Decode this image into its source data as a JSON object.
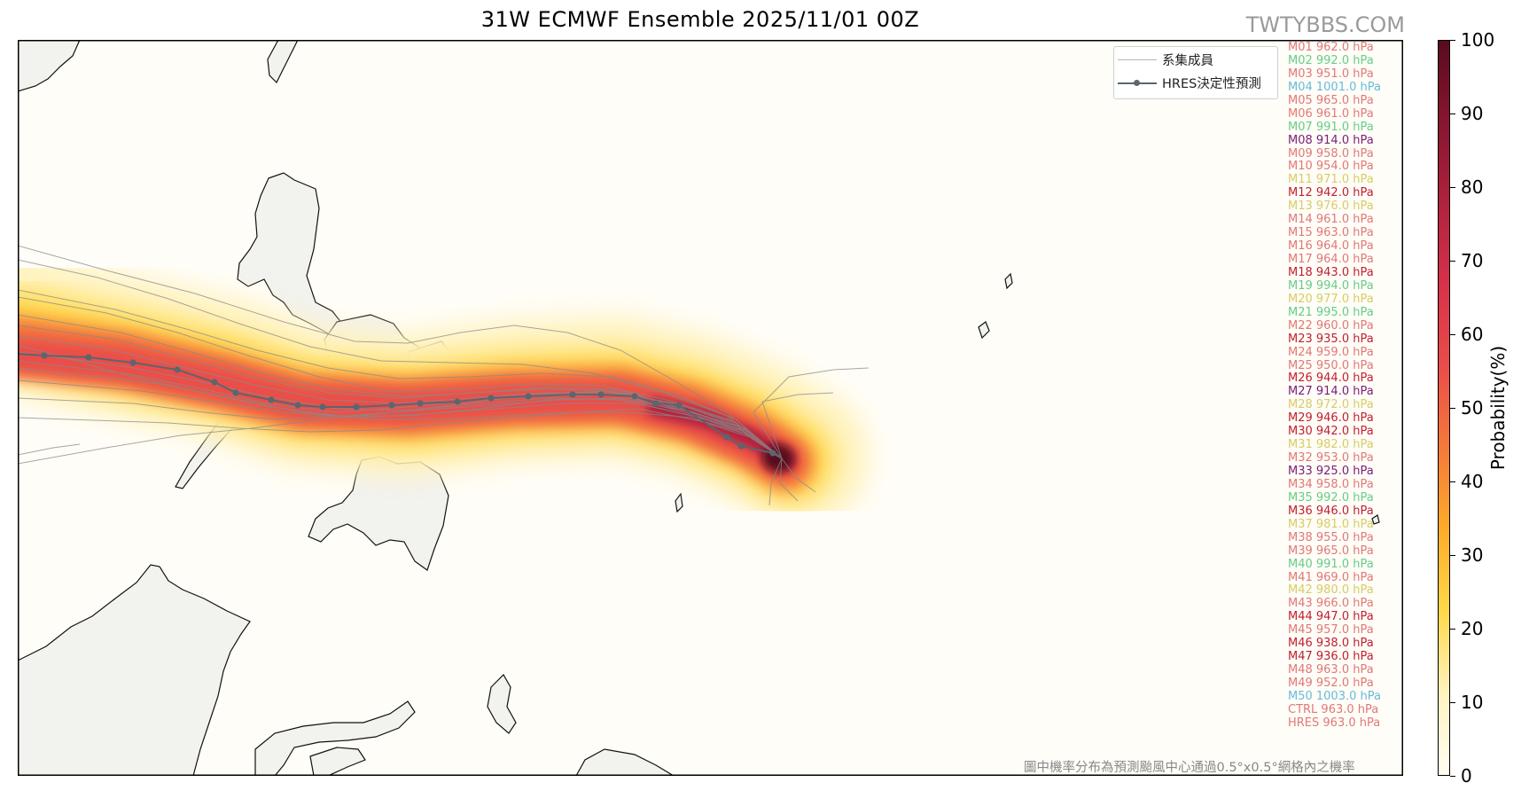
{
  "title": "31W  ECMWF Ensemble 2025/11/01 00Z",
  "watermark": "TWTYBBS.COM",
  "legend": {
    "members_label": "系集成員",
    "hres_label": "HRES決定性預測"
  },
  "footnote": "圖中機率分布為預測颱風中心通過0.5°x0.5°網格內之機率",
  "colorbar": {
    "label": "Probability(%)",
    "ticks": [
      "0",
      "10",
      "20",
      "30",
      "40",
      "50",
      "60",
      "70",
      "80",
      "90",
      "100"
    ],
    "colors": [
      "#fffdf0",
      "#fff3c0",
      "#ffd84a",
      "#fdac2a",
      "#f47a3a",
      "#ea4d4a",
      "#d6324a",
      "#b0223d",
      "#881530",
      "#5a0a1f"
    ]
  },
  "colors": {
    "land": "#f2f2ee",
    "ocean": "#fffdf7",
    "coast": "#111111",
    "tracks": "#8a8a8a",
    "hres": "#5a6670"
  },
  "members": [
    {
      "label": "M01 962.0 hPa",
      "color": "#e07878"
    },
    {
      "label": "M02 992.0 hPa",
      "color": "#66cc88"
    },
    {
      "label": "M03 951.0 hPa",
      "color": "#e07878"
    },
    {
      "label": "M04 1001.0 hPa",
      "color": "#66bbdd"
    },
    {
      "label": "M05 965.0 hPa",
      "color": "#e07878"
    },
    {
      "label": "M06 961.0 hPa",
      "color": "#e07878"
    },
    {
      "label": "M07 991.0 hPa",
      "color": "#66cc88"
    },
    {
      "label": "M08 914.0 hPa",
      "color": "#7a1c78"
    },
    {
      "label": "M09 958.0 hPa",
      "color": "#e07878"
    },
    {
      "label": "M10 954.0 hPa",
      "color": "#e07878"
    },
    {
      "label": "M11 971.0 hPa",
      "color": "#d6cc66"
    },
    {
      "label": "M12 942.0 hPa",
      "color": "#c01e30"
    },
    {
      "label": "M13 976.0 hPa",
      "color": "#d6cc66"
    },
    {
      "label": "M14 961.0 hPa",
      "color": "#e07878"
    },
    {
      "label": "M15 963.0 hPa",
      "color": "#e07878"
    },
    {
      "label": "M16 964.0 hPa",
      "color": "#e07878"
    },
    {
      "label": "M17 964.0 hPa",
      "color": "#e07878"
    },
    {
      "label": "M18 943.0 hPa",
      "color": "#c01e30"
    },
    {
      "label": "M19 994.0 hPa",
      "color": "#66cc88"
    },
    {
      "label": "M20 977.0 hPa",
      "color": "#d6cc66"
    },
    {
      "label": "M21 995.0 hPa",
      "color": "#66cc88"
    },
    {
      "label": "M22 960.0 hPa",
      "color": "#e07878"
    },
    {
      "label": "M23 935.0 hPa",
      "color": "#c01e30"
    },
    {
      "label": "M24 959.0 hPa",
      "color": "#e07878"
    },
    {
      "label": "M25 950.0 hPa",
      "color": "#e07878"
    },
    {
      "label": "M26 944.0 hPa",
      "color": "#c01e30"
    },
    {
      "label": "M27 914.0 hPa",
      "color": "#7a1c78"
    },
    {
      "label": "M28 972.0 hPa",
      "color": "#d6cc66"
    },
    {
      "label": "M29 946.0 hPa",
      "color": "#c01e30"
    },
    {
      "label": "M30 942.0 hPa",
      "color": "#c01e30"
    },
    {
      "label": "M31 982.0 hPa",
      "color": "#d6cc66"
    },
    {
      "label": "M32 953.0 hPa",
      "color": "#e07878"
    },
    {
      "label": "M33 925.0 hPa",
      "color": "#7a1c78"
    },
    {
      "label": "M34 958.0 hPa",
      "color": "#e07878"
    },
    {
      "label": "M35 992.0 hPa",
      "color": "#66cc88"
    },
    {
      "label": "M36 946.0 hPa",
      "color": "#c01e30"
    },
    {
      "label": "M37 981.0 hPa",
      "color": "#d6cc66"
    },
    {
      "label": "M38 955.0 hPa",
      "color": "#e07878"
    },
    {
      "label": "M39 965.0 hPa",
      "color": "#e07878"
    },
    {
      "label": "M40 991.0 hPa",
      "color": "#66cc88"
    },
    {
      "label": "M41 969.0 hPa",
      "color": "#e07878"
    },
    {
      "label": "M42 980.0 hPa",
      "color": "#d6cc66"
    },
    {
      "label": "M43 966.0 hPa",
      "color": "#e07878"
    },
    {
      "label": "M44 947.0 hPa",
      "color": "#c01e30"
    },
    {
      "label": "M45 957.0 hPa",
      "color": "#e07878"
    },
    {
      "label": "M46 938.0 hPa",
      "color": "#c01e30"
    },
    {
      "label": "M47 936.0 hPa",
      "color": "#c01e30"
    },
    {
      "label": "M48 963.0 hPa",
      "color": "#e07878"
    },
    {
      "label": "M49 952.0 hPa",
      "color": "#e07878"
    },
    {
      "label": "M50 1003.0 hPa",
      "color": "#66bbdd"
    },
    {
      "label": "CTRL 963.0 hPa",
      "color": "#e07878"
    },
    {
      "label": "HRES 963.0 hPa",
      "color": "#e07878"
    }
  ]
}
